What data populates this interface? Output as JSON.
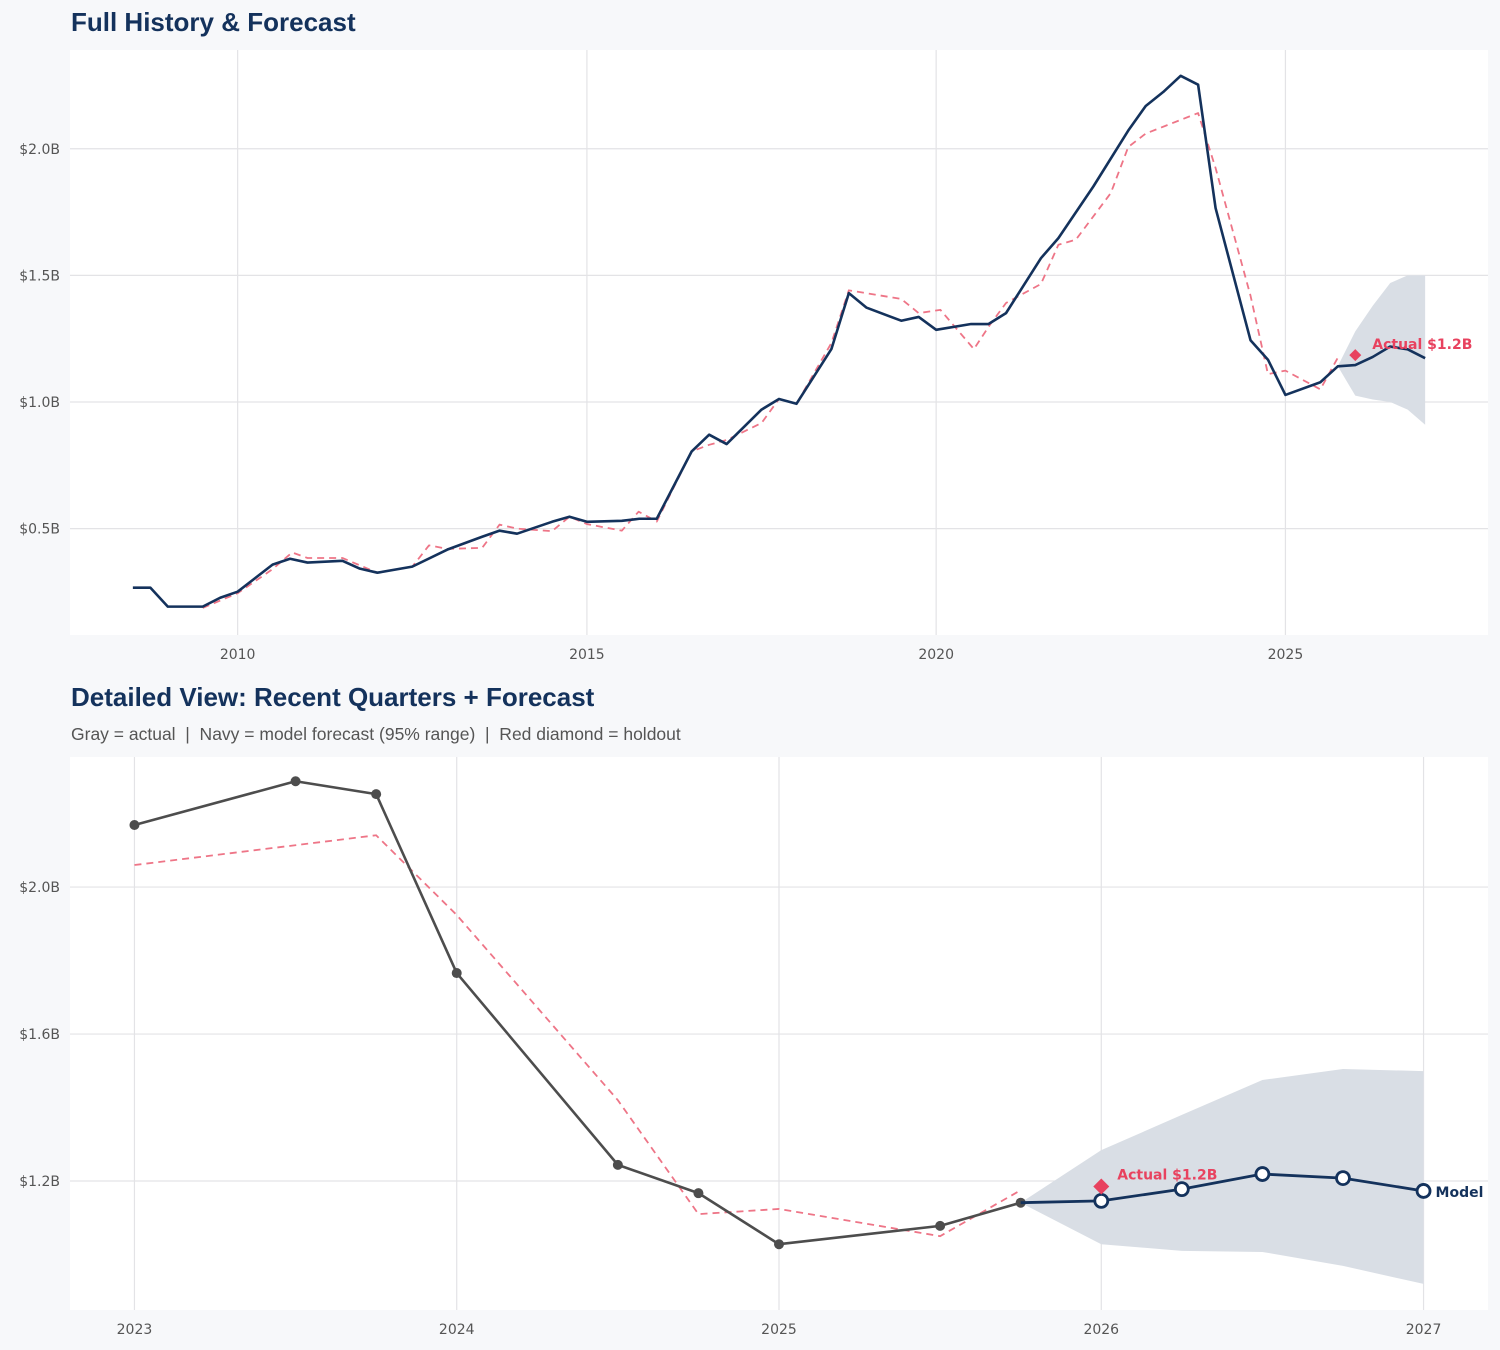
{
  "chart_data": [
    {
      "type": "line",
      "title": "Full History & Forecast",
      "xlim": [
        2007.6,
        2027.9
      ],
      "ylim": [
        0.08,
        2.39
      ],
      "x_ticks": [
        2010,
        2015,
        2020,
        2025
      ],
      "x_tick_labels": [
        "2010",
        "2015",
        "2020",
        "2025"
      ],
      "y_ticks": [
        0.5,
        1.0,
        1.5,
        2.0
      ],
      "y_tick_labels": [
        "$0.5B",
        "$1.0B",
        "$1.5B",
        "$2.0B"
      ],
      "grid": true,
      "colors": {
        "navy": "#14325c",
        "red": "#e8425f",
        "dashed": "#ee7587",
        "band": "#d9dee5"
      },
      "series": [
        {
          "color": "#14325c",
          "dash": false,
          "points": [
            [
              2008.5,
              0.267
            ],
            [
              2008.75,
              0.267
            ],
            [
              2009.0,
              0.192
            ],
            [
              2009.5,
              0.192
            ],
            [
              2009.75,
              0.227
            ],
            [
              2010.0,
              0.251
            ],
            [
              2010.5,
              0.358
            ],
            [
              2010.75,
              0.381
            ],
            [
              2011.0,
              0.366
            ],
            [
              2011.5,
              0.373
            ],
            [
              2011.75,
              0.342
            ],
            [
              2012.0,
              0.326
            ],
            [
              2012.5,
              0.35
            ],
            [
              2013.0,
              0.417
            ],
            [
              2013.5,
              0.468
            ],
            [
              2013.75,
              0.492
            ],
            [
              2014.0,
              0.48
            ],
            [
              2014.5,
              0.527
            ],
            [
              2014.75,
              0.547
            ],
            [
              2015.0,
              0.527
            ],
            [
              2015.5,
              0.531
            ],
            [
              2015.75,
              0.539
            ],
            [
              2016.0,
              0.539
            ],
            [
              2016.5,
              0.805
            ],
            [
              2016.75,
              0.871
            ],
            [
              2017.0,
              0.834
            ],
            [
              2017.5,
              0.97
            ],
            [
              2017.75,
              1.012
            ],
            [
              2018.0,
              0.993
            ],
            [
              2018.5,
              1.209
            ],
            [
              2018.75,
              1.43
            ],
            [
              2019.0,
              1.373
            ],
            [
              2019.5,
              1.321
            ],
            [
              2019.75,
              1.336
            ],
            [
              2020.0,
              1.285
            ],
            [
              2020.5,
              1.308
            ],
            [
              2020.75,
              1.308
            ],
            [
              2021.0,
              1.351
            ],
            [
              2021.5,
              1.568
            ],
            [
              2021.75,
              1.647
            ],
            [
              2022.25,
              1.851
            ],
            [
              2022.75,
              2.072
            ],
            [
              2023.0,
              2.169
            ],
            [
              2023.25,
              2.224
            ],
            [
              2023.5,
              2.288
            ],
            [
              2023.75,
              2.253
            ],
            [
              2024.0,
              1.766
            ],
            [
              2024.5,
              1.244
            ],
            [
              2024.75,
              1.167
            ],
            [
              2025.0,
              1.028
            ],
            [
              2025.5,
              1.078
            ],
            [
              2025.75,
              1.141
            ],
            [
              2026.0,
              1.146
            ],
            [
              2026.25,
              1.178
            ],
            [
              2026.5,
              1.219
            ],
            [
              2026.75,
              1.208
            ],
            [
              2027.0,
              1.173
            ]
          ]
        },
        {
          "color": "#ee7587",
          "dash": true,
          "points": [
            [
              2009.5,
              0.187
            ],
            [
              2010.0,
              0.245
            ],
            [
              2010.5,
              0.34
            ],
            [
              2010.78,
              0.406
            ],
            [
              2011.0,
              0.384
            ],
            [
              2011.5,
              0.384
            ],
            [
              2012.0,
              0.326
            ],
            [
              2012.5,
              0.35
            ],
            [
              2012.74,
              0.434
            ],
            [
              2013.0,
              0.42
            ],
            [
              2013.5,
              0.424
            ],
            [
              2013.75,
              0.516
            ],
            [
              2014.0,
              0.5
            ],
            [
              2014.5,
              0.49
            ],
            [
              2014.75,
              0.547
            ],
            [
              2015.0,
              0.518
            ],
            [
              2015.5,
              0.492
            ],
            [
              2015.74,
              0.567
            ],
            [
              2016.0,
              0.528
            ],
            [
              2016.5,
              0.805
            ],
            [
              2016.75,
              0.831
            ],
            [
              2017.0,
              0.85
            ],
            [
              2017.5,
              0.917
            ],
            [
              2017.75,
              1.012
            ],
            [
              2018.0,
              0.993
            ],
            [
              2018.5,
              1.233
            ],
            [
              2018.75,
              1.441
            ],
            [
              2019.5,
              1.407
            ],
            [
              2019.75,
              1.351
            ],
            [
              2020.06,
              1.364
            ],
            [
              2020.54,
              1.209
            ],
            [
              2020.77,
              1.305
            ],
            [
              2021.0,
              1.391
            ],
            [
              2021.5,
              1.466
            ],
            [
              2021.75,
              1.621
            ],
            [
              2022.0,
              1.641
            ],
            [
              2022.5,
              1.825
            ],
            [
              2022.75,
              2.007
            ],
            [
              2023.0,
              2.06
            ],
            [
              2023.75,
              2.141
            ],
            [
              2024.0,
              1.924
            ],
            [
              2024.5,
              1.42
            ],
            [
              2024.75,
              1.11
            ],
            [
              2025.0,
              1.124
            ],
            [
              2025.5,
              1.05
            ],
            [
              2025.75,
              1.175
            ]
          ]
        }
      ],
      "band": {
        "x": [
          2025.75,
          2026.0,
          2026.25,
          2026.5,
          2026.75,
          2027.0
        ],
        "upper": [
          1.141,
          1.279,
          1.38,
          1.47,
          1.5,
          1.5
        ],
        "lower": [
          1.141,
          1.025,
          1.01,
          1.0,
          0.97,
          0.91
        ]
      },
      "holdout": {
        "x": 2026.0,
        "y": 1.185,
        "label": "Actual $1.2B"
      }
    },
    {
      "type": "line",
      "title": "Detailed View: Recent Quarters + Forecast",
      "subtitle": "Gray = actual  |  Navy = model forecast (95% range)  |  Red diamond = holdout",
      "xlim": [
        2022.8,
        2027.2
      ],
      "ylim": [
        0.849,
        2.354
      ],
      "x_ticks": [
        2023,
        2024,
        2025,
        2026,
        2027
      ],
      "x_tick_labels": [
        "2023",
        "2024",
        "2025",
        "2026",
        "2027"
      ],
      "y_ticks": [
        1.2,
        1.6,
        2.0
      ],
      "y_tick_labels": [
        "$1.2B",
        "$1.6B",
        "$2.0B"
      ],
      "grid": true,
      "colors": {
        "gray": "#4d4d4d",
        "navy": "#14325c",
        "red": "#e8425f",
        "dashed": "#ee7587",
        "band": "#d9dee5"
      },
      "actual": {
        "x": [
          2023.0,
          2023.5,
          2023.75,
          2024.0,
          2024.5,
          2024.75,
          2025.0,
          2025.5,
          2025.75
        ],
        "y": [
          2.169,
          2.288,
          2.253,
          1.766,
          1.244,
          1.167,
          1.028,
          1.078,
          1.141
        ]
      },
      "fitted": {
        "x": [
          2023.0,
          2023.75,
          2024.0,
          2024.5,
          2024.75,
          2025.0,
          2025.5,
          2025.75
        ],
        "y": [
          2.06,
          2.141,
          1.924,
          1.42,
          1.11,
          1.124,
          1.05,
          1.175
        ]
      },
      "forecast": {
        "x": [
          2025.75,
          2026.0,
          2026.25,
          2026.5,
          2026.75,
          2027.0
        ],
        "y": [
          1.141,
          1.146,
          1.178,
          1.219,
          1.208,
          1.173
        ],
        "label": "Model"
      },
      "band": {
        "x": [
          2025.75,
          2026.0,
          2026.25,
          2026.5,
          2026.75,
          2027.0
        ],
        "upper": [
          1.141,
          1.284,
          1.38,
          1.475,
          1.505,
          1.499
        ],
        "lower": [
          1.141,
          1.028,
          1.01,
          1.007,
          0.969,
          0.92
        ]
      },
      "holdout": {
        "x": 2026.0,
        "y": 1.185,
        "label": "Actual $1.2B"
      }
    }
  ]
}
